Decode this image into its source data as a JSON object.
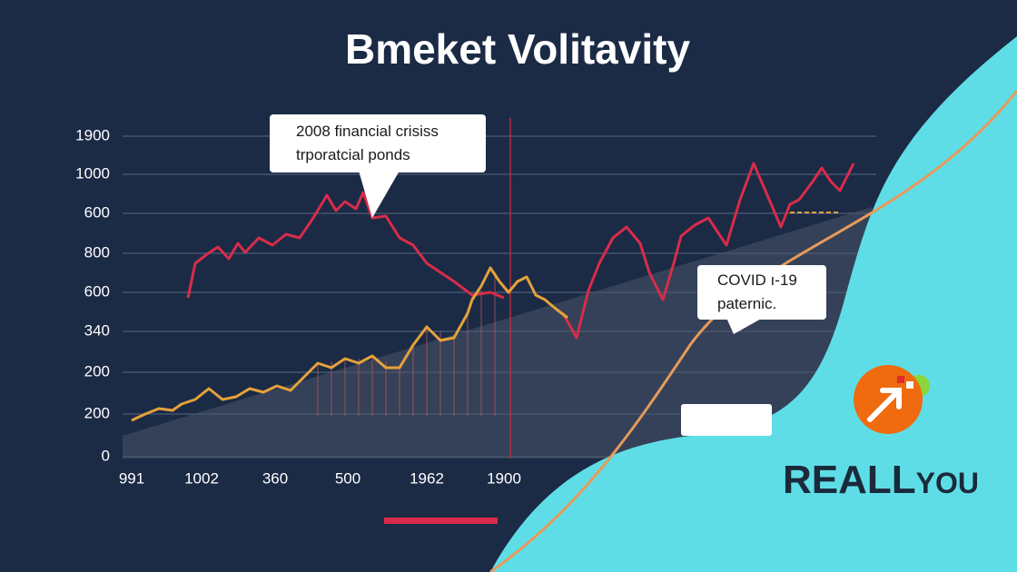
{
  "title": "Bmeket Volitavity",
  "y_labels": [
    "1900",
    "1000",
    "600",
    "800",
    "600",
    "340",
    "200",
    "200",
    "0"
  ],
  "x_labels": [
    "991",
    "1002",
    "360",
    "500",
    "1962",
    "1900"
  ],
  "annotations": [
    {
      "lines": [
        "2008 financial crisiss",
        "trporatcial ponds"
      ]
    },
    {
      "lines": [
        "COVID ı-19",
        "paternic."
      ]
    }
  ],
  "logo": {
    "main": "REALL",
    "tail": "YOU"
  }
}
